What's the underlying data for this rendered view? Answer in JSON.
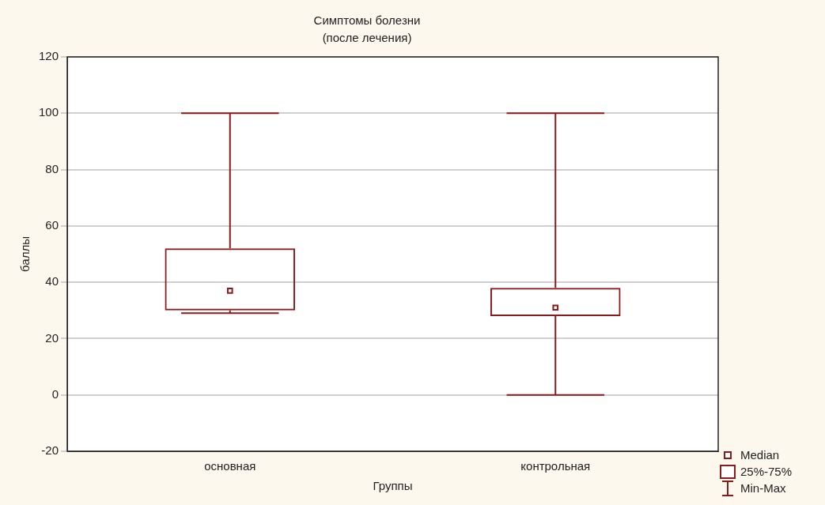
{
  "chart_data": {
    "type": "box",
    "title": "Симптомы болезни",
    "subtitle": "(после лечения)",
    "xlabel": "Группы",
    "ylabel": "баллы",
    "categories": [
      "основная",
      "контрольная"
    ],
    "boxes": [
      {
        "low": 29,
        "q1": 30,
        "median": 37,
        "q3": 52,
        "high": 100
      },
      {
        "low": 0,
        "q1": 28,
        "median": 31,
        "q3": 38,
        "high": 100
      }
    ],
    "color": "#8b1a1a",
    "ylim": [
      -20,
      120
    ],
    "yticks": [
      -20,
      0,
      20,
      40,
      60,
      80,
      100,
      120
    ],
    "grid": "y",
    "marker": "square",
    "annotations": [
      "Median",
      "25%-75%",
      "Min-Max"
    ]
  }
}
